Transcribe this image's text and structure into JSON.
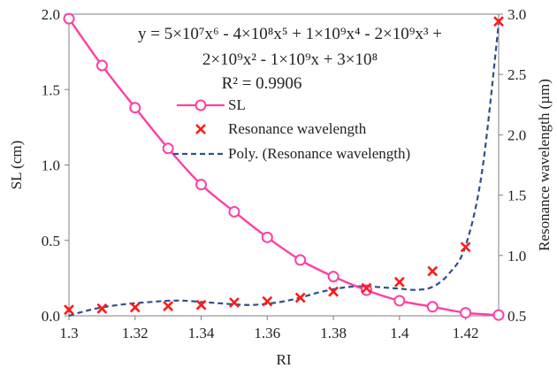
{
  "chart_data": {
    "type": "line",
    "xlabel": "RI",
    "ylabel_left": "SL (cm)",
    "ylabel_right": "Resonance wavelength (µm)",
    "xlim": [
      1.3,
      1.43
    ],
    "ylim_left": [
      0,
      2.0
    ],
    "ylim_right": [
      0.5,
      3.0
    ],
    "x_ticks": [
      1.3,
      1.32,
      1.34,
      1.36,
      1.38,
      1.4,
      1.42
    ],
    "x_tick_labels": [
      "1.3",
      "1.32",
      "1.34",
      "1.36",
      "1.38",
      "1.4",
      "1.42"
    ],
    "y_left_ticks": [
      0,
      0.5,
      1.0,
      1.5,
      2.0
    ],
    "y_left_tick_labels": [
      "0.0",
      "0.5",
      "1.0",
      "1.5",
      "2.0"
    ],
    "y_right_ticks": [
      0.5,
      1.0,
      1.5,
      2.0,
      2.5,
      3.0
    ],
    "y_right_tick_labels": [
      "0.5",
      "1.0",
      "1.5",
      "2.0",
      "2.5",
      "3.0"
    ],
    "grid": false,
    "legend_position": "top-center",
    "equation": {
      "line1": "y = 5×10⁷x⁶ - 4×10⁸x⁵ + 1×10⁹x⁴ - 2×10⁹x³ +",
      "line2": "2×10⁹x² - 1×10⁹x + 3×10⁸",
      "r2": "R² = 0.9906"
    },
    "series": [
      {
        "name": "SL",
        "axis": "left",
        "style": "line-circle",
        "color": "#ff3fa4",
        "x": [
          1.3,
          1.31,
          1.32,
          1.33,
          1.34,
          1.35,
          1.36,
          1.37,
          1.38,
          1.39,
          1.4,
          1.41,
          1.42,
          1.43
        ],
        "y": [
          1.97,
          1.66,
          1.38,
          1.11,
          0.87,
          0.69,
          0.52,
          0.37,
          0.26,
          0.17,
          0.1,
          0.06,
          0.02,
          0.005
        ]
      },
      {
        "name": "Resonance wavelength",
        "axis": "right",
        "style": "x-marker",
        "color": "#ff1a1a",
        "x": [
          1.3,
          1.31,
          1.32,
          1.33,
          1.34,
          1.35,
          1.36,
          1.37,
          1.38,
          1.39,
          1.4,
          1.41,
          1.42,
          1.43
        ],
        "y": [
          0.55,
          0.56,
          0.57,
          0.58,
          0.59,
          0.61,
          0.62,
          0.65,
          0.7,
          0.73,
          0.78,
          0.87,
          1.07,
          2.94
        ]
      },
      {
        "name": "Poly. (Resonance wavelength)",
        "axis": "right",
        "style": "dashed",
        "color": "#2f4f8f",
        "x": [
          1.3,
          1.305,
          1.31,
          1.315,
          1.32,
          1.325,
          1.33,
          1.335,
          1.34,
          1.345,
          1.35,
          1.355,
          1.36,
          1.365,
          1.37,
          1.375,
          1.38,
          1.385,
          1.39,
          1.395,
          1.4,
          1.405,
          1.41,
          1.415,
          1.42,
          1.425,
          1.43
        ],
        "y": [
          0.5,
          0.54,
          0.57,
          0.59,
          0.605,
          0.615,
          0.625,
          0.625,
          0.615,
          0.605,
          0.595,
          0.59,
          0.6,
          0.62,
          0.65,
          0.69,
          0.72,
          0.74,
          0.745,
          0.735,
          0.725,
          0.715,
          0.74,
          0.85,
          1.08,
          1.7,
          2.92
        ]
      }
    ]
  }
}
